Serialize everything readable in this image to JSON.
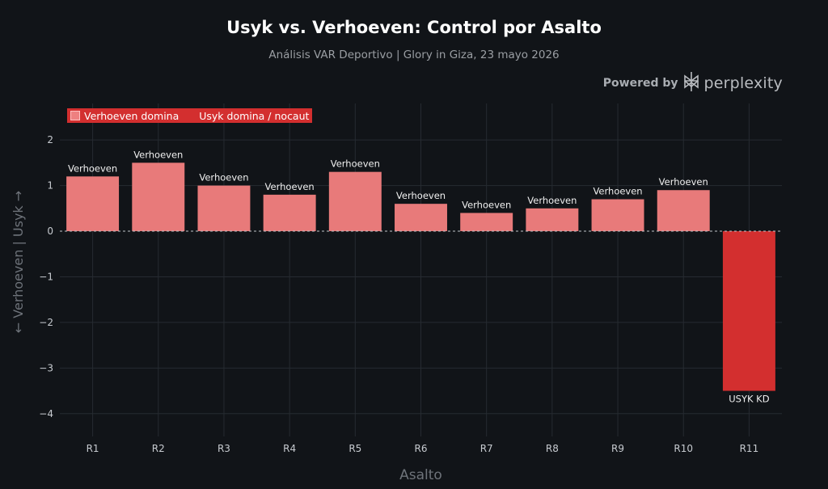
{
  "title": "Usyk vs. Verhoeven: Control por Asalto",
  "subtitle": "Análisis VAR Deportivo | Glory in Giza, 23 mayo 2026",
  "brand": {
    "powered_by": "Powered by",
    "name": "perplexity",
    "icon": "perplexity-logo-icon"
  },
  "legend": {
    "items": [
      "Verhoeven domina",
      "Usyk domina / nocaut"
    ]
  },
  "colors": {
    "background": "#111418",
    "verhoeven": "#e87a7a",
    "usyk": "#d32f2f",
    "grid": "#262b31",
    "zero_line": "#bfc3c8"
  },
  "chart_data": {
    "type": "bar",
    "categories": [
      "R1",
      "R2",
      "R3",
      "R4",
      "R5",
      "R6",
      "R7",
      "R8",
      "R9",
      "R10",
      "R11"
    ],
    "values": [
      1.2,
      1.5,
      1.0,
      0.8,
      1.3,
      0.6,
      0.4,
      0.5,
      0.7,
      0.9,
      -3.5
    ],
    "bar_labels": [
      "Verhoeven",
      "Verhoeven",
      "Verhoeven",
      "Verhoeven",
      "Verhoeven",
      "Verhoeven",
      "Verhoeven",
      "Verhoeven",
      "Verhoeven",
      "Verhoeven",
      "USYK KD"
    ],
    "bar_groups": [
      "Verhoeven domina",
      "Verhoeven domina",
      "Verhoeven domina",
      "Verhoeven domina",
      "Verhoeven domina",
      "Verhoeven domina",
      "Verhoeven domina",
      "Verhoeven domina",
      "Verhoeven domina",
      "Verhoeven domina",
      "Usyk domina / nocaut"
    ],
    "xlabel": "Asalto",
    "ylabel": "← Verhoeven | Usyk →",
    "ylim": [
      -4.5,
      2.8
    ],
    "yticks": [
      2,
      1,
      0,
      -1,
      -2,
      -3,
      -4
    ],
    "ytick_labels": [
      "2",
      "1",
      "0",
      "−1",
      "−2",
      "−3",
      "−4"
    ],
    "grid": true,
    "legend_position": "top-left"
  }
}
